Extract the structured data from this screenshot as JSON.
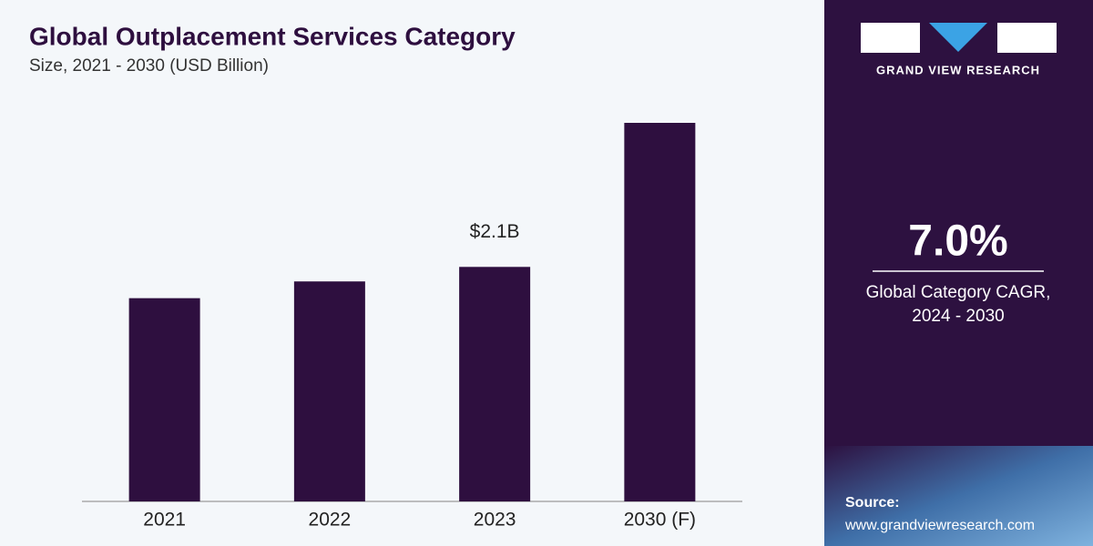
{
  "chart_data": {
    "type": "bar",
    "title": "Global Outplacement Services Category",
    "subtitle": "Size, 2021 - 2030 (USD Billion)",
    "categories": [
      "2021",
      "2022",
      "2023",
      "2030 (F)"
    ],
    "values": [
      1.82,
      1.97,
      2.1,
      3.39
    ],
    "value_labels": [
      null,
      null,
      "$2.1B",
      null
    ],
    "color": "#2e0f3f"
  },
  "panel": {
    "brand": "GRAND VIEW RESEARCH",
    "cagr": "7.0%",
    "cagr_label": [
      "Global Category CAGR,",
      "2024 - 2030"
    ],
    "source_label": "Source:",
    "source_url": "www.grandviewresearch.com"
  }
}
